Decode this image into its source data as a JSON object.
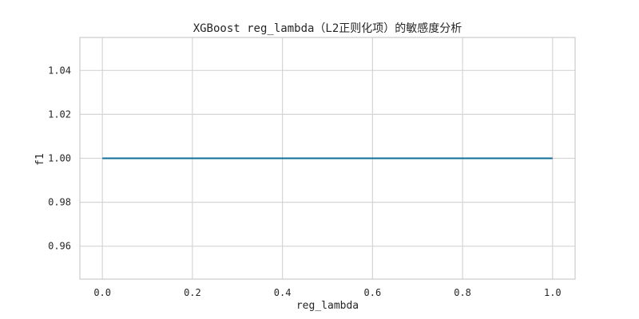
{
  "chart_data": {
    "type": "line",
    "title": "XGBoost reg_lambda（L2正则化项）的敏感度分析",
    "xlabel": "reg_lambda",
    "ylabel": "f1",
    "xlim": [
      -0.05,
      1.05
    ],
    "ylim": [
      0.945,
      1.055
    ],
    "xticks": [
      0.0,
      0.2,
      0.4,
      0.6,
      0.8,
      1.0
    ],
    "xtick_labels": [
      "0.0",
      "0.2",
      "0.4",
      "0.6",
      "0.8",
      "1.0"
    ],
    "yticks": [
      0.96,
      0.98,
      1.0,
      1.02,
      1.04
    ],
    "ytick_labels": [
      "0.96",
      "0.98",
      "1.00",
      "1.02",
      "1.04"
    ],
    "grid": true,
    "series": [
      {
        "x": [
          0.0,
          0.2,
          0.4,
          0.6,
          0.8,
          1.0
        ],
        "y": [
          1.0,
          1.0,
          1.0,
          1.0,
          1.0,
          1.0
        ],
        "color": "#0e6e96"
      }
    ]
  }
}
